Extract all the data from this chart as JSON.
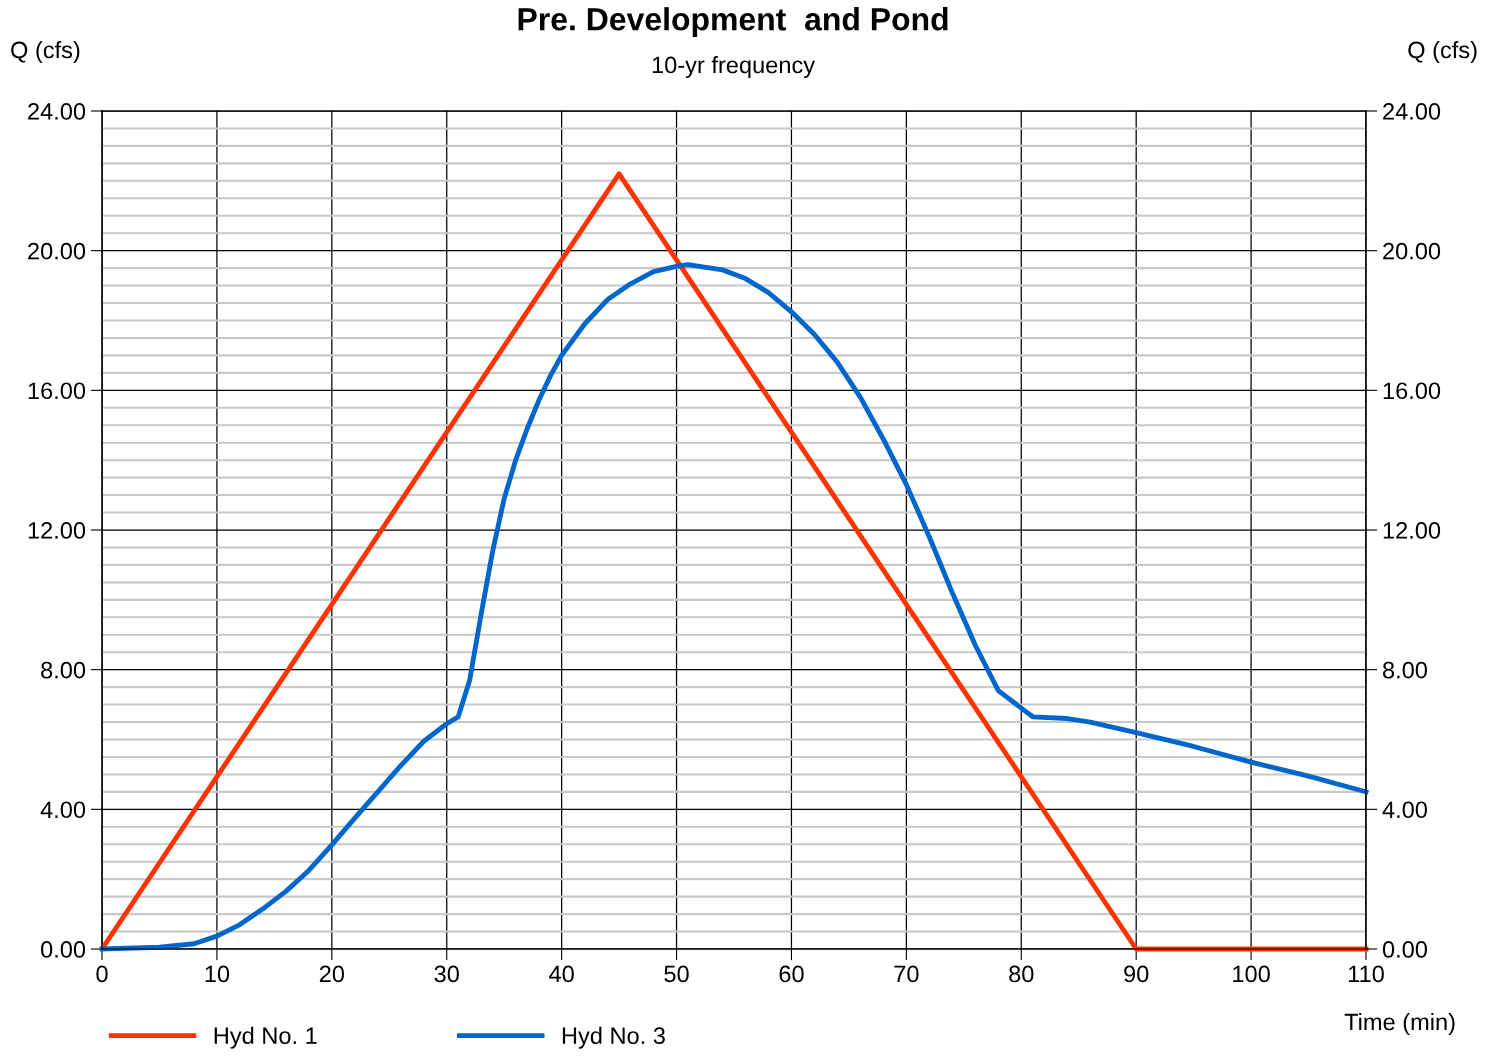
{
  "chart_data": {
    "type": "line",
    "title": "Pre. Development  and Pond",
    "subtitle": "10-yr frequency",
    "xlabel": "Time (min)",
    "ylabel": "Q (cfs)",
    "y2label": "Q (cfs)",
    "xlim": [
      0,
      110
    ],
    "xticks": [
      0,
      10,
      20,
      30,
      40,
      50,
      60,
      70,
      80,
      90,
      100,
      110
    ],
    "ylim": [
      0,
      24
    ],
    "yticks": [
      {
        "value": 0,
        "label": "0.00"
      },
      {
        "value": 4,
        "label": "4.00"
      },
      {
        "value": 8,
        "label": "8.00"
      },
      {
        "value": 12,
        "label": "12.00"
      },
      {
        "value": 16,
        "label": "16.00"
      },
      {
        "value": 20,
        "label": "20.00"
      },
      {
        "value": 24,
        "label": "24.00"
      }
    ],
    "y2lim": [
      0,
      24
    ],
    "y2ticks": [
      {
        "value": 0,
        "label": "0.00"
      },
      {
        "value": 4,
        "label": "4.00"
      },
      {
        "value": 8,
        "label": "8.00"
      },
      {
        "value": 12,
        "label": "12.00"
      },
      {
        "value": 16,
        "label": "16.00"
      },
      {
        "value": 20,
        "label": "20.00"
      },
      {
        "value": 24,
        "label": "24.00"
      }
    ],
    "grid": true,
    "legend": "bottom left",
    "marker": "none",
    "line_style": "solid",
    "series": [
      {
        "name": "Hyd No. 1",
        "color": "#ff3300",
        "x": [
          0,
          45,
          90,
          110
        ],
        "values": [
          0,
          22.2,
          0,
          0
        ]
      },
      {
        "name": "Hyd No. 3",
        "color": "#0066cc",
        "x": [
          0,
          5,
          8,
          10,
          12,
          14,
          16,
          18,
          20,
          22,
          24,
          26,
          28,
          30,
          31,
          32,
          33,
          34,
          35,
          36,
          37,
          38,
          39,
          40,
          42,
          44,
          46,
          48,
          50,
          51,
          54,
          56,
          58,
          60,
          62,
          64,
          66,
          68,
          70,
          72,
          74,
          76,
          78,
          80,
          81,
          84,
          86,
          88,
          90,
          95,
          100,
          105,
          110
        ],
        "values": [
          0,
          0.05,
          0.15,
          0.37,
          0.7,
          1.15,
          1.65,
          2.25,
          2.98,
          3.75,
          4.5,
          5.25,
          5.95,
          6.45,
          6.65,
          7.7,
          9.6,
          11.4,
          12.9,
          14.0,
          14.9,
          15.7,
          16.4,
          17.0,
          17.9,
          18.6,
          19.05,
          19.4,
          19.55,
          19.6,
          19.45,
          19.2,
          18.8,
          18.25,
          17.6,
          16.8,
          15.8,
          14.6,
          13.3,
          11.8,
          10.2,
          8.7,
          7.4,
          6.9,
          6.65,
          6.6,
          6.5,
          6.35,
          6.2,
          5.8,
          5.35,
          4.95,
          4.5
        ]
      }
    ]
  }
}
